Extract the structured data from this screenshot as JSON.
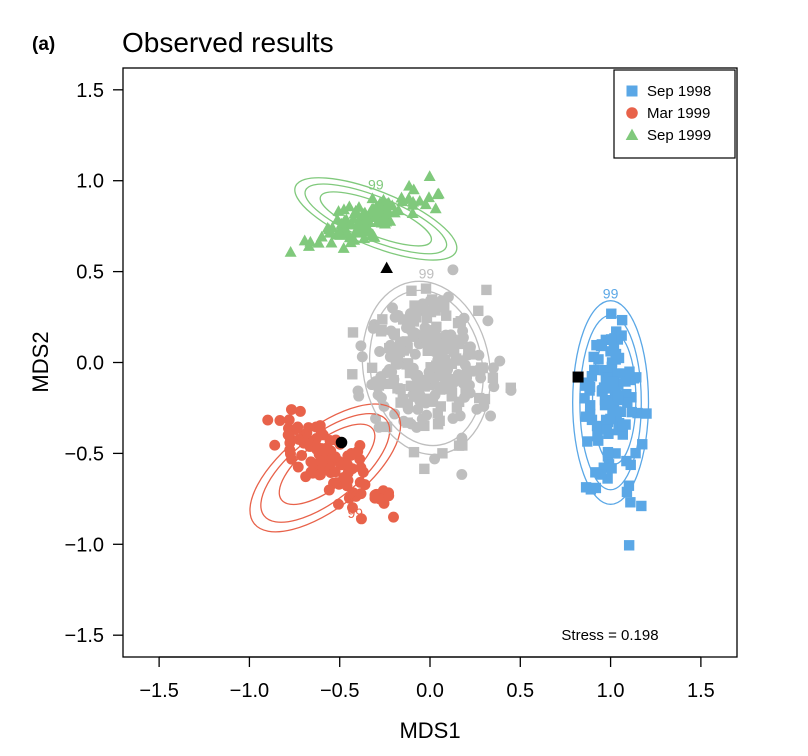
{
  "chart_data": {
    "type": "scatter",
    "panel_label": "(a)",
    "title": "Observed results",
    "xlabel": "MDS1",
    "ylabel": "MDS2",
    "xlim": [
      -1.7,
      1.7
    ],
    "ylim": [
      -1.62,
      1.62
    ],
    "x_ticks": [
      -1.5,
      -1.0,
      -0.5,
      0.0,
      0.5,
      1.0,
      1.5
    ],
    "x_tick_labels": [
      "−1.5",
      "−1.0",
      "−0.5",
      "0.0",
      "0.5",
      "1.0",
      "1.5"
    ],
    "y_ticks": [
      -1.5,
      -1.0,
      -0.5,
      0.0,
      0.5,
      1.0,
      1.5
    ],
    "y_tick_labels": [
      "−1.5",
      "−1.0",
      "−0.5",
      "0.0",
      "0.5",
      "1.0",
      "1.5"
    ],
    "grid": false,
    "legend_position": "top-right",
    "annotation": "Stress = 0.198",
    "contour_label": "99",
    "series": [
      {
        "name": "Sep 1998",
        "marker": "square",
        "color": "#5aa7e6",
        "cluster": {
          "center": [
            1.0,
            -0.25
          ],
          "spread": [
            0.075,
            0.21
          ]
        },
        "centroid": [
          0.82,
          -0.08
        ],
        "contours": [
          {
            "center": [
              1.0,
              -0.22
            ],
            "radius": [
              0.21,
              0.56
            ],
            "angle": 0
          },
          {
            "center": [
              1.0,
              -0.22
            ],
            "radius": [
              0.17,
              0.48
            ],
            "angle": 0
          },
          {
            "center": [
              1.02,
              -0.2
            ],
            "radius": [
              0.12,
              0.36
            ],
            "angle": 0
          }
        ]
      },
      {
        "name": "Mar 1999",
        "marker": "circle",
        "color": "#e8624a",
        "cluster": {
          "center": [
            -0.55,
            -0.55
          ],
          "spread": [
            0.14,
            0.12
          ]
        },
        "centroid": [
          -0.49,
          -0.44
        ],
        "contours": [
          {
            "center": [
              -0.58,
              -0.58
            ],
            "radius": [
              0.5,
              0.22
            ],
            "angle": -38
          },
          {
            "center": [
              -0.58,
              -0.58
            ],
            "radius": [
              0.43,
              0.18
            ],
            "angle": -38
          },
          {
            "center": [
              -0.57,
              -0.56
            ],
            "radius": [
              0.32,
              0.13
            ],
            "angle": -38
          }
        ]
      },
      {
        "name": "Sep 1999",
        "marker": "triangle",
        "color": "#80c97c",
        "cluster": {
          "center": [
            -0.3,
            0.8
          ],
          "spread": [
            0.2,
            0.07
          ]
        },
        "centroid": [
          -0.24,
          0.52
        ],
        "contours": [
          {
            "center": [
              -0.3,
              0.79
            ],
            "radius": [
              0.48,
              0.15
            ],
            "angle": 22
          },
          {
            "center": [
              -0.3,
              0.79
            ],
            "radius": [
              0.42,
              0.12
            ],
            "angle": 22
          },
          {
            "center": [
              -0.3,
              0.79
            ],
            "radius": [
              0.33,
              0.09
            ],
            "angle": 22
          }
        ]
      },
      {
        "name": "",
        "marker": "mixed",
        "color": "#bebebe",
        "cluster": {
          "center": [
            0.0,
            0.0
          ],
          "spread": [
            0.17,
            0.2
          ]
        },
        "contours": [
          {
            "center": [
              -0.02,
              -0.03
            ],
            "radius": [
              0.35,
              0.48
            ],
            "angle": -10
          },
          {
            "center": [
              -0.02,
              -0.03
            ],
            "radius": [
              0.31,
              0.43
            ],
            "angle": -10
          }
        ]
      }
    ]
  }
}
